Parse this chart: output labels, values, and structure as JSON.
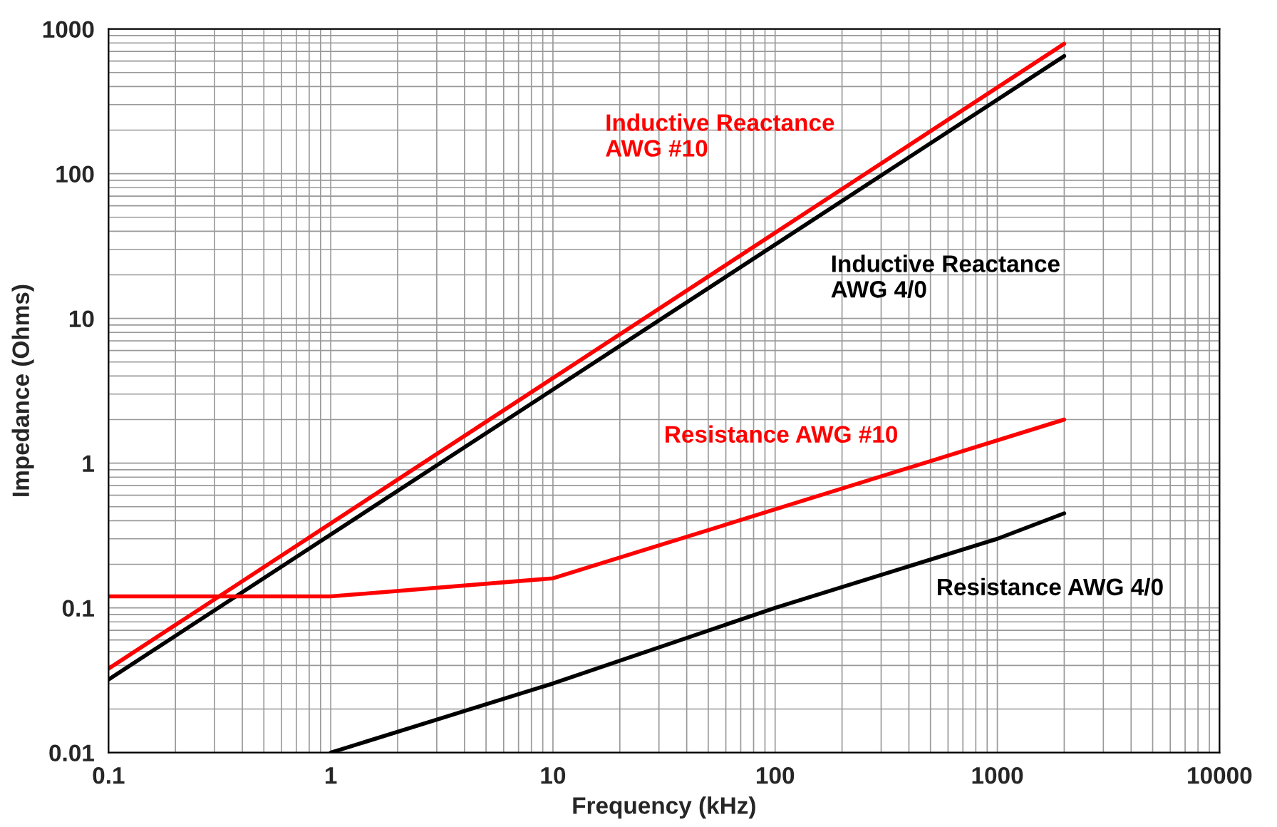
{
  "chart_data": {
    "type": "line",
    "xlabel": "Frequency (kHz)",
    "ylabel": "Impedance (Ohms)",
    "log": "xy",
    "grid": true,
    "marker": "none",
    "line_style": "solid",
    "xlim": [
      0.1,
      10000
    ],
    "xticks": [
      0.1,
      1,
      10,
      100,
      1000,
      10000
    ],
    "ylim": [
      0.01,
      1000
    ],
    "yticks": [
      0.01,
      0.1,
      1,
      10,
      100,
      1000
    ],
    "series": [
      {
        "name": "Inductive Reactance\nAWG #10",
        "color": "#ff0000",
        "x": [
          0.1,
          2000
        ],
        "values": [
          0.038,
          790
        ]
      },
      {
        "name": "Inductive Reactance\nAWG 4/0",
        "color": "#000000",
        "x": [
          0.1,
          2000
        ],
        "values": [
          0.032,
          650
        ]
      },
      {
        "name": "Resistance AWG #10",
        "color": "#ff0000",
        "x": [
          0.1,
          1,
          10,
          2000
        ],
        "values": [
          0.12,
          0.12,
          0.16,
          2.0
        ]
      },
      {
        "name": "Resistance AWG 4/0",
        "color": "#000000",
        "x": [
          1,
          10,
          100,
          1000,
          2000
        ],
        "values": [
          0.01,
          0.03,
          0.1,
          0.3,
          0.45
        ]
      }
    ]
  }
}
